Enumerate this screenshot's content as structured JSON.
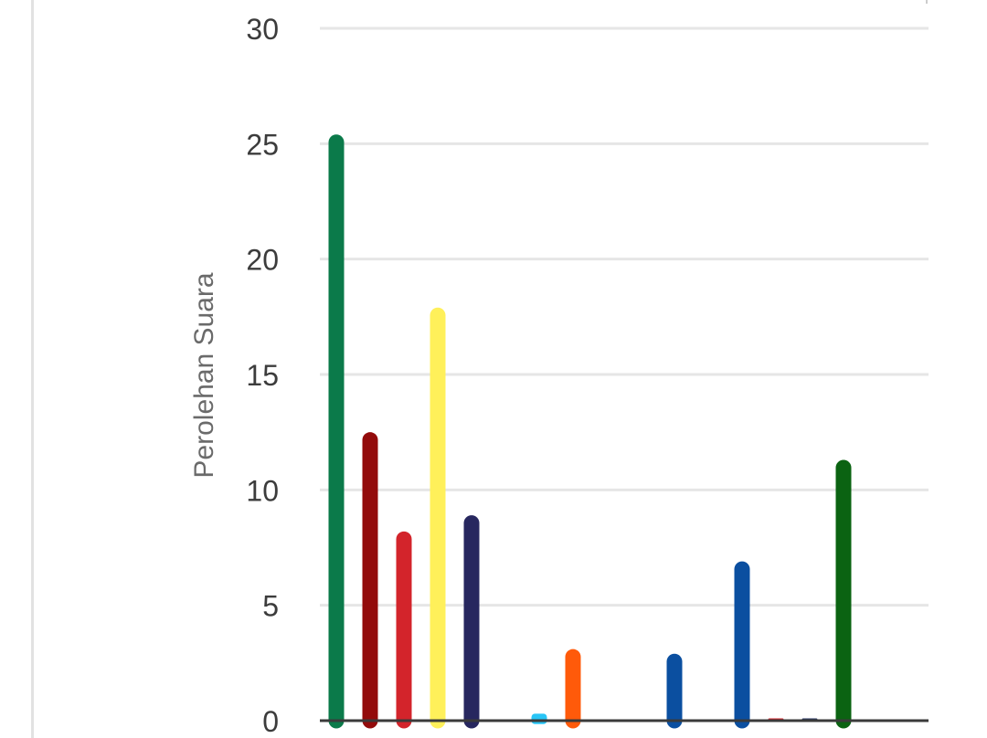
{
  "chart_data": {
    "type": "bar",
    "ylabel": "Perolehan Suara",
    "ylim": [
      0,
      30
    ],
    "yticks": [
      "0",
      "5",
      "10",
      "15",
      "20",
      "25",
      "30"
    ],
    "grid": true,
    "values": [
      25.4,
      12.5,
      8.2,
      17.9,
      8.9,
      0,
      0.3,
      3.1,
      0,
      0,
      2.9,
      0,
      6.9,
      0.1,
      0.1,
      11.3
    ],
    "colors": [
      "#0b7a4a",
      "#930b0b",
      "#d3242b",
      "#fff05a",
      "#27275f",
      "#ffffff",
      "#29c5f6",
      "#ff5a0a",
      "#ffffff",
      "#ffffff",
      "#0b4fa0",
      "#ffffff",
      "#0b4fa0",
      "#d3242b",
      "#27355f",
      "#0b6312"
    ]
  }
}
